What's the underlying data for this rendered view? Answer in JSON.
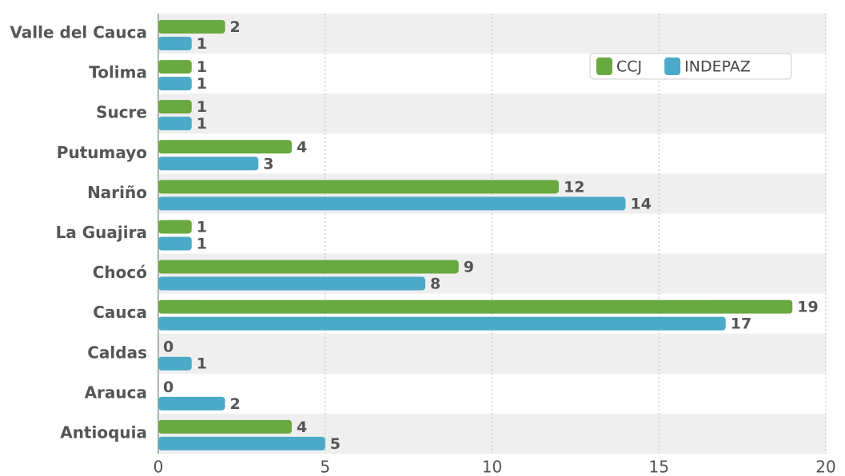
{
  "chart_data": {
    "type": "barh",
    "categories": [
      "Valle del Cauca",
      "Tolima",
      "Sucre",
      "Putumayo",
      "Nariño",
      "La Guajira",
      "Chocó",
      "Cauca",
      "Caldas",
      "Arauca",
      "Antioquia"
    ],
    "series": [
      {
        "name": "CCJ",
        "color": "#6aa842",
        "values": [
          2,
          1,
          1,
          4,
          12,
          1,
          9,
          19,
          0,
          0,
          4
        ]
      },
      {
        "name": "INDEPAZ",
        "color": "#4aaac8",
        "values": [
          1,
          1,
          1,
          3,
          14,
          1,
          8,
          17,
          1,
          2,
          5
        ]
      }
    ],
    "xlim": [
      0,
      20
    ],
    "xticks": [
      0,
      5,
      10,
      15,
      20
    ],
    "grid": true,
    "legend": "upper right"
  }
}
